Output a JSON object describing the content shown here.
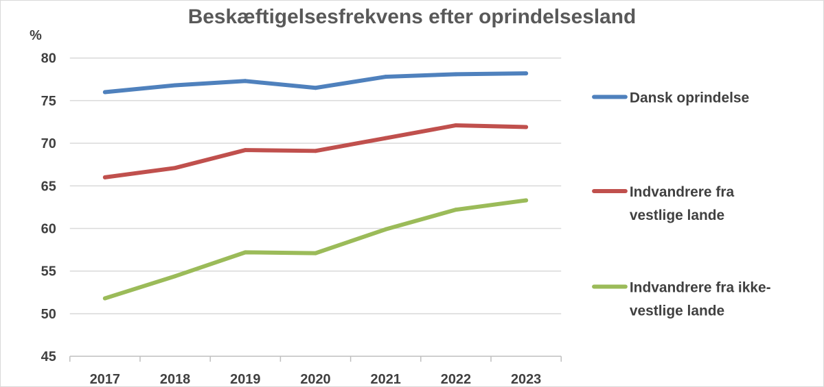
{
  "chart_data": {
    "type": "line",
    "title": "Beskæftigelsesfrekvens efter oprindelsesland",
    "ylabel": "%",
    "xlabel": "",
    "x": [
      "2017",
      "2018",
      "2019",
      "2020",
      "2021",
      "2022",
      "2023"
    ],
    "ylim": [
      45,
      80
    ],
    "yticks": [
      "80",
      "75",
      "70",
      "65",
      "60",
      "55",
      "50",
      "45"
    ],
    "grid": true,
    "legend": "right",
    "series": [
      {
        "name": "Dansk oprindelse",
        "name_lines": [
          "Dansk oprindelse"
        ],
        "color": "#4f81bd",
        "values": [
          76.0,
          76.8,
          77.3,
          76.5,
          77.8,
          78.1,
          78.2
        ]
      },
      {
        "name": "Indvandrere fra vestlige lande",
        "name_lines": [
          "Indvandrere fra",
          "vestlige lande"
        ],
        "color": "#c0504d",
        "values": [
          66.0,
          67.1,
          69.2,
          69.1,
          70.6,
          72.1,
          71.9
        ]
      },
      {
        "name": "Indvandrere fra ikke-vestlige lande",
        "name_lines": [
          "Indvandrere fra ikke-",
          "vestlige lande"
        ],
        "color": "#9bbb59",
        "values": [
          51.8,
          54.4,
          57.2,
          57.1,
          59.9,
          62.2,
          63.3
        ]
      }
    ]
  }
}
